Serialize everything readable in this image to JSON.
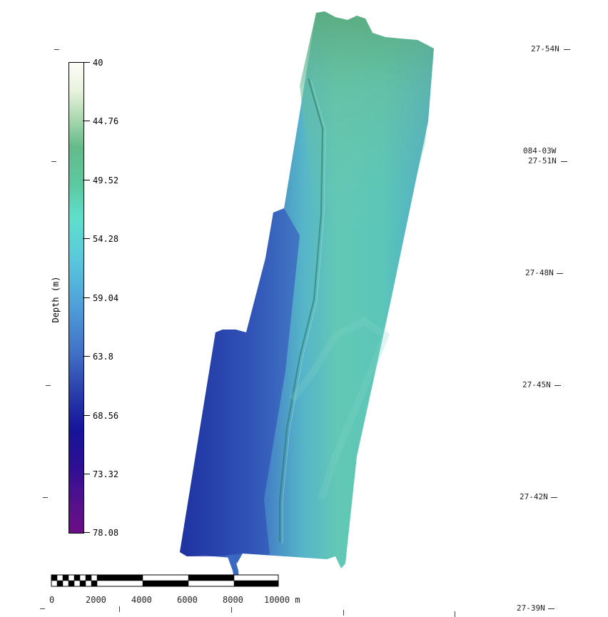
{
  "colorbar": {
    "title": "Depth (m)",
    "ticks": [
      "40",
      "44.76",
      "49.52",
      "54.28",
      "59.04",
      "63.8",
      "68.56",
      "73.32",
      "78.08"
    ]
  },
  "latitude_labels": [
    "27-54N",
    "27-51N",
    "27-48N",
    "27-45N",
    "27-42N",
    "27-39N"
  ],
  "longitude_label": "084-03W",
  "scale_bar": {
    "labels": [
      "0",
      "2000",
      "4000",
      "6000",
      "8000",
      "10000 m"
    ]
  },
  "colors": {
    "shallow": "#f7f5e8",
    "mid_green": "#5fb592",
    "teal": "#5ed7c5",
    "blue": "#3c6ac2",
    "deep_navy": "#14148c",
    "deepest": "#6a0e86"
  }
}
